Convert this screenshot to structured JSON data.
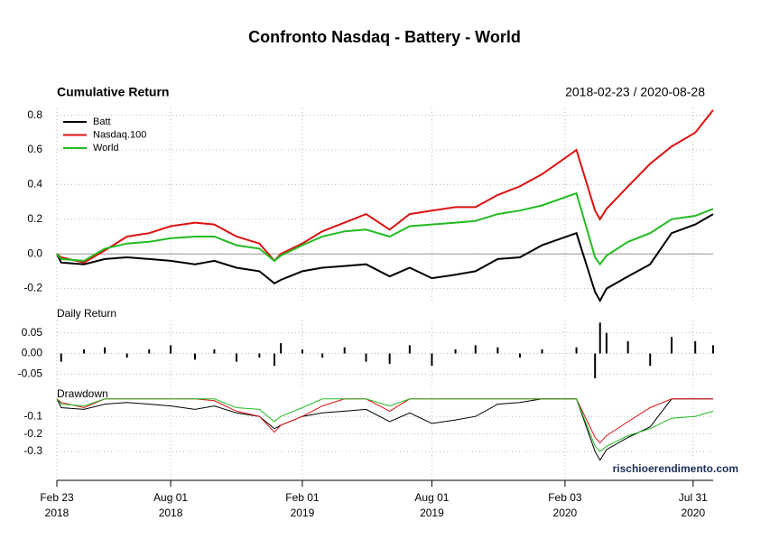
{
  "chart_data": [
    {
      "type": "line",
      "title": "Confronto Nasdaq - Battery - World",
      "subtitle": "Cumulative Return",
      "date_range": "2018-02-23 / 2020-08-28",
      "x": [
        "2018-02-23",
        "2018-03-01",
        "2018-04-02",
        "2018-05-01",
        "2018-06-01",
        "2018-07-02",
        "2018-08-01",
        "2018-09-04",
        "2018-10-01",
        "2018-11-01",
        "2018-12-03",
        "2018-12-24",
        "2019-01-02",
        "2019-02-01",
        "2019-03-01",
        "2019-04-01",
        "2019-05-01",
        "2019-06-03",
        "2019-07-01",
        "2019-08-01",
        "2019-09-03",
        "2019-10-01",
        "2019-11-01",
        "2019-12-02",
        "2020-01-02",
        "2020-02-19",
        "2020-03-16",
        "2020-03-23",
        "2020-04-01",
        "2020-05-01",
        "2020-06-01",
        "2020-07-01",
        "2020-08-03",
        "2020-08-28"
      ],
      "series": [
        {
          "name": "Batt",
          "color": "#000000",
          "values": [
            0,
            -0.05,
            -0.06,
            -0.03,
            -0.02,
            -0.03,
            -0.04,
            -0.06,
            -0.04,
            -0.08,
            -0.1,
            -0.17,
            -0.15,
            -0.1,
            -0.08,
            -0.07,
            -0.06,
            -0.13,
            -0.08,
            -0.14,
            -0.12,
            -0.1,
            -0.03,
            -0.02,
            0.05,
            0.12,
            -0.22,
            -0.27,
            -0.2,
            -0.13,
            -0.06,
            0.12,
            0.17,
            0.23
          ]
        },
        {
          "name": "Nasdaq.100",
          "color": "#dd1111",
          "values": [
            0,
            -0.02,
            -0.05,
            0.02,
            0.1,
            0.12,
            0.16,
            0.18,
            0.17,
            0.1,
            0.06,
            -0.04,
            0,
            0.06,
            0.13,
            0.18,
            0.23,
            0.14,
            0.23,
            0.25,
            0.27,
            0.27,
            0.34,
            0.39,
            0.46,
            0.6,
            0.25,
            0.2,
            0.26,
            0.39,
            0.52,
            0.62,
            0.7,
            0.83
          ]
        },
        {
          "name": "World",
          "color": "#22bb22",
          "values": [
            0,
            -0.03,
            -0.04,
            0.03,
            0.06,
            0.07,
            0.09,
            0.1,
            0.1,
            0.05,
            0.03,
            -0.04,
            -0.01,
            0.05,
            0.1,
            0.13,
            0.14,
            0.1,
            0.16,
            0.17,
            0.18,
            0.19,
            0.23,
            0.25,
            0.28,
            0.35,
            -0.02,
            -0.06,
            -0.01,
            0.07,
            0.12,
            0.2,
            0.22,
            0.26
          ]
        }
      ],
      "ylim": [
        -0.27,
        0.84
      ],
      "yticks": [
        -0.2,
        {
          "value": 0,
          "label": "0.0"
        },
        0.2,
        0.4,
        0.6,
        0.8
      ],
      "grid": true,
      "legend": "top-left"
    },
    {
      "type": "bar",
      "subtitle": "Daily Return",
      "x": [
        "2018-02-23",
        "2018-03-01",
        "2018-04-02",
        "2018-05-01",
        "2018-06-01",
        "2018-07-02",
        "2018-08-01",
        "2018-09-04",
        "2018-10-01",
        "2018-11-01",
        "2018-12-03",
        "2018-12-24",
        "2019-01-02",
        "2019-02-01",
        "2019-03-01",
        "2019-04-01",
        "2019-05-01",
        "2019-06-03",
        "2019-07-01",
        "2019-08-01",
        "2019-09-03",
        "2019-10-01",
        "2019-11-01",
        "2019-12-02",
        "2020-01-02",
        "2020-02-19",
        "2020-03-16",
        "2020-03-23",
        "2020-04-01",
        "2020-05-01",
        "2020-06-01",
        "2020-07-01",
        "2020-08-03",
        "2020-08-28"
      ],
      "values": [
        0,
        -0.02,
        0.01,
        0.015,
        -0.01,
        0.01,
        0.02,
        -0.015,
        0.01,
        -0.02,
        -0.01,
        -0.03,
        0.025,
        0.01,
        -0.01,
        0.015,
        -0.02,
        -0.025,
        0.02,
        -0.03,
        0.01,
        0.02,
        0.015,
        -0.01,
        0.01,
        0.015,
        -0.06,
        0.075,
        0.05,
        0.03,
        -0.03,
        0.04,
        0.03,
        0.02
      ],
      "color": "#000000",
      "ylim": [
        -0.08,
        0.08
      ],
      "yticks": [
        0.05,
        {
          "value": 0,
          "label": "0.00"
        },
        -0.05
      ],
      "grid": true
    },
    {
      "type": "line",
      "subtitle": "Drawdown",
      "watermark": "rischioerendimento.com",
      "x": [
        "2018-02-23",
        "2018-03-01",
        "2018-04-02",
        "2018-05-01",
        "2018-06-01",
        "2018-07-02",
        "2018-08-01",
        "2018-09-04",
        "2018-10-01",
        "2018-11-01",
        "2018-12-03",
        "2018-12-24",
        "2019-01-02",
        "2019-02-01",
        "2019-03-01",
        "2019-04-01",
        "2019-05-01",
        "2019-06-03",
        "2019-07-01",
        "2019-08-01",
        "2019-09-03",
        "2019-10-01",
        "2019-11-01",
        "2019-12-02",
        "2020-01-02",
        "2020-02-19",
        "2020-03-16",
        "2020-03-23",
        "2020-04-01",
        "2020-05-01",
        "2020-06-01",
        "2020-07-01",
        "2020-08-03",
        "2020-08-28"
      ],
      "series": [
        {
          "name": "Batt",
          "color": "#000000",
          "values": [
            0,
            -0.05,
            -0.06,
            -0.03,
            -0.02,
            -0.03,
            -0.04,
            -0.06,
            -0.04,
            -0.08,
            -0.1,
            -0.17,
            -0.15,
            -0.1,
            -0.08,
            -0.07,
            -0.06,
            -0.13,
            -0.08,
            -0.14,
            -0.12,
            -0.1,
            -0.03,
            -0.02,
            0,
            0,
            -0.3,
            -0.35,
            -0.29,
            -0.22,
            -0.16,
            0,
            0,
            0
          ]
        },
        {
          "name": "Nasdaq.100",
          "color": "#dd1111",
          "values": [
            0,
            -0.02,
            -0.05,
            0,
            0,
            0,
            0,
            0,
            -0.01,
            -0.07,
            -0.1,
            -0.19,
            -0.15,
            -0.1,
            -0.04,
            0,
            0,
            -0.07,
            0,
            0,
            0,
            0,
            0,
            0,
            0,
            0,
            -0.22,
            -0.25,
            -0.21,
            -0.13,
            -0.05,
            0,
            0,
            0
          ]
        },
        {
          "name": "World",
          "color": "#22bb22",
          "values": [
            0,
            -0.03,
            -0.04,
            0,
            0,
            0,
            0,
            0,
            0,
            -0.05,
            -0.06,
            -0.13,
            -0.1,
            -0.05,
            0,
            0,
            0,
            -0.04,
            0,
            0,
            0,
            0,
            0,
            0,
            0,
            0,
            -0.27,
            -0.3,
            -0.27,
            -0.21,
            -0.17,
            -0.11,
            -0.1,
            -0.07
          ]
        }
      ],
      "ylim": [
        -0.46,
        0.03
      ],
      "yticks": [
        -0.1,
        -0.2,
        -0.3
      ],
      "grid": true,
      "xlim": [
        "2018-02-23",
        "2020-08-28"
      ],
      "xticks": [
        {
          "value": "2018-02-23",
          "label": [
            "Feb 23",
            "2018"
          ]
        },
        {
          "value": "2018-08-01",
          "label": [
            "Aug 01",
            "2018"
          ]
        },
        {
          "value": "2019-02-01",
          "label": [
            "Feb 01",
            "2019"
          ]
        },
        {
          "value": "2019-08-01",
          "label": [
            "Aug 01",
            "2019"
          ]
        },
        {
          "value": "2020-02-03",
          "label": [
            "Feb 03",
            "2020"
          ]
        },
        {
          "value": "2020-07-31",
          "label": [
            "Jul 31",
            "2020"
          ]
        }
      ]
    }
  ]
}
